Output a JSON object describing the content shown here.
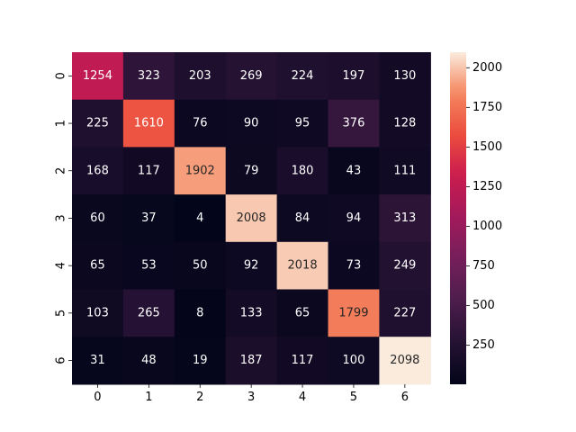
{
  "chart_data": {
    "type": "heatmap",
    "title": "",
    "xlabel": "",
    "ylabel": "",
    "x_categories": [
      "0",
      "1",
      "2",
      "3",
      "4",
      "5",
      "6"
    ],
    "y_categories": [
      "0",
      "1",
      "2",
      "3",
      "4",
      "5",
      "6"
    ],
    "matrix": [
      [
        1254,
        323,
        203,
        269,
        224,
        197,
        130
      ],
      [
        225,
        1610,
        76,
        90,
        95,
        376,
        128
      ],
      [
        168,
        117,
        1902,
        79,
        180,
        43,
        111
      ],
      [
        60,
        37,
        4,
        2008,
        84,
        94,
        313
      ],
      [
        65,
        53,
        50,
        92,
        2018,
        73,
        249
      ],
      [
        103,
        265,
        8,
        133,
        65,
        1799,
        227
      ],
      [
        31,
        48,
        19,
        187,
        117,
        100,
        2098
      ]
    ],
    "colormap": "rocket",
    "color_range": [
      4,
      2098
    ],
    "colorbar_ticks": [
      "250",
      "500",
      "750",
      "1000",
      "1250",
      "1500",
      "1750",
      "2000"
    ],
    "colorbar_tick_values": [
      250,
      500,
      750,
      1000,
      1250,
      1500,
      1750,
      2000
    ],
    "colorbar_position": "right",
    "grid": false
  }
}
